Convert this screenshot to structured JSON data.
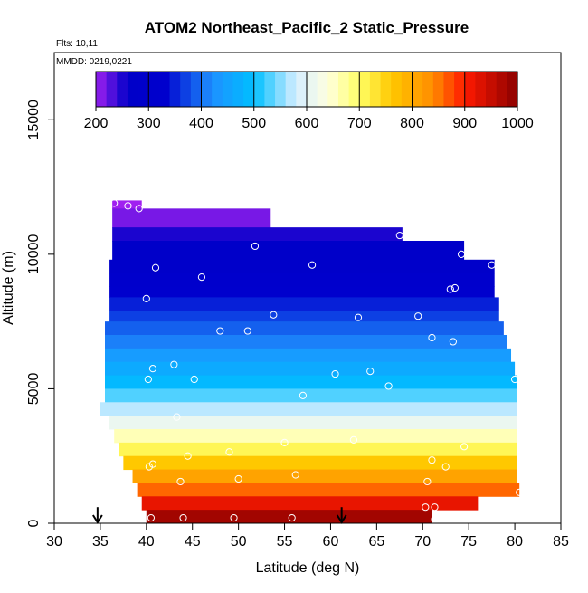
{
  "chart_data": {
    "type": "heatmap",
    "title": "ATOM2 Northeast_Pacific_2 Static_Pressure",
    "flights_label": "Flts: 10,11",
    "dates_label": "MMDD: 0219,0221",
    "xlabel": "Latitude (deg N)",
    "ylabel": "Altitude (m)",
    "xlim": [
      30,
      85
    ],
    "ylim": [
      0,
      17500
    ],
    "x_ticks": [
      30,
      35,
      40,
      45,
      50,
      55,
      60,
      65,
      70,
      75,
      80,
      85
    ],
    "y_ticks": [
      0,
      5000,
      10000,
      15000
    ],
    "colorbar": {
      "range": [
        200,
        1000
      ],
      "ticks": [
        200,
        300,
        400,
        500,
        600,
        700,
        800,
        900,
        1000
      ],
      "stops": [
        {
          "v": 200,
          "c": "#a020f0"
        },
        {
          "v": 260,
          "c": "#0000c8"
        },
        {
          "v": 330,
          "c": "#0000cd"
        },
        {
          "v": 420,
          "c": "#1e90ff"
        },
        {
          "v": 500,
          "c": "#00bfff"
        },
        {
          "v": 580,
          "c": "#d6eeff"
        },
        {
          "v": 640,
          "c": "#ffffe0"
        },
        {
          "v": 700,
          "c": "#ffff66"
        },
        {
          "v": 760,
          "c": "#ffc800"
        },
        {
          "v": 840,
          "c": "#ff8c00"
        },
        {
          "v": 900,
          "c": "#ff1a00"
        },
        {
          "v": 1000,
          "c": "#8b0000"
        }
      ]
    },
    "curtain_rows": [
      {
        "alt_bottom": 11700,
        "alt_top": 12000,
        "lat_start": 36.3,
        "lat_end": 39.5,
        "value": 200
      },
      {
        "alt_bottom": 11000,
        "alt_top": 11700,
        "lat_start": 36.3,
        "lat_end": 53.5,
        "value": 215
      },
      {
        "alt_bottom": 10500,
        "alt_top": 11000,
        "lat_start": 36.3,
        "lat_end": 67.8,
        "value": 250
      },
      {
        "alt_bottom": 9800,
        "alt_top": 10500,
        "lat_start": 36.3,
        "lat_end": 74.5,
        "value": 270
      },
      {
        "alt_bottom": 9300,
        "alt_top": 9800,
        "lat_start": 36.0,
        "lat_end": 77.8,
        "value": 290
      },
      {
        "alt_bottom": 8800,
        "alt_top": 9300,
        "lat_start": 36.0,
        "lat_end": 77.8,
        "value": 310
      },
      {
        "alt_bottom": 8400,
        "alt_top": 8800,
        "lat_start": 36.0,
        "lat_end": 77.8,
        "value": 330
      },
      {
        "alt_bottom": 7900,
        "alt_top": 8400,
        "lat_start": 36.0,
        "lat_end": 78.3,
        "value": 350
      },
      {
        "alt_bottom": 7500,
        "alt_top": 7900,
        "lat_start": 36.0,
        "lat_end": 78.3,
        "value": 370
      },
      {
        "alt_bottom": 7000,
        "alt_top": 7500,
        "lat_start": 35.5,
        "lat_end": 78.8,
        "value": 390
      },
      {
        "alt_bottom": 6500,
        "alt_top": 7000,
        "lat_start": 35.5,
        "lat_end": 79.2,
        "value": 410
      },
      {
        "alt_bottom": 6000,
        "alt_top": 6500,
        "lat_start": 35.5,
        "lat_end": 79.6,
        "value": 440
      },
      {
        "alt_bottom": 5500,
        "alt_top": 6000,
        "lat_start": 35.5,
        "lat_end": 80.0,
        "value": 465
      },
      {
        "alt_bottom": 5000,
        "alt_top": 5500,
        "lat_start": 35.5,
        "lat_end": 80.2,
        "value": 490
      },
      {
        "alt_bottom": 4500,
        "alt_top": 5000,
        "lat_start": 35.5,
        "lat_end": 80.2,
        "value": 530
      },
      {
        "alt_bottom": 4000,
        "alt_top": 4500,
        "lat_start": 35.0,
        "lat_end": 80.2,
        "value": 570
      },
      {
        "alt_bottom": 3500,
        "alt_top": 4000,
        "lat_start": 36.0,
        "lat_end": 80.2,
        "value": 610
      },
      {
        "alt_bottom": 3000,
        "alt_top": 3500,
        "lat_start": 36.5,
        "lat_end": 80.2,
        "value": 660
      },
      {
        "alt_bottom": 2500,
        "alt_top": 3000,
        "lat_start": 37.0,
        "lat_end": 80.2,
        "value": 710
      },
      {
        "alt_bottom": 2000,
        "alt_top": 2500,
        "lat_start": 37.5,
        "lat_end": 80.2,
        "value": 760
      },
      {
        "alt_bottom": 1500,
        "alt_top": 2000,
        "lat_start": 38.5,
        "lat_end": 80.2,
        "value": 810
      },
      {
        "alt_bottom": 1000,
        "alt_top": 1500,
        "lat_start": 39.0,
        "lat_end": 80.5,
        "value": 860
      },
      {
        "alt_bottom": 500,
        "alt_top": 1000,
        "lat_start": 39.5,
        "lat_end": 76.0,
        "value": 920
      },
      {
        "alt_bottom": 0,
        "alt_top": 500,
        "lat_start": 40.0,
        "lat_end": 71.0,
        "value": 980
      }
    ],
    "sample_points": [
      {
        "lat": 36.5,
        "alt": 11900
      },
      {
        "lat": 38.0,
        "alt": 11800
      },
      {
        "lat": 39.2,
        "alt": 11700
      },
      {
        "lat": 67.5,
        "alt": 10700
      },
      {
        "lat": 51.8,
        "alt": 10300
      },
      {
        "lat": 74.2,
        "alt": 10000
      },
      {
        "lat": 58.0,
        "alt": 9600
      },
      {
        "lat": 77.5,
        "alt": 9600
      },
      {
        "lat": 41.0,
        "alt": 9500
      },
      {
        "lat": 46.0,
        "alt": 9150
      },
      {
        "lat": 73.5,
        "alt": 8750
      },
      {
        "lat": 73.0,
        "alt": 8700
      },
      {
        "lat": 40.0,
        "alt": 8350
      },
      {
        "lat": 53.8,
        "alt": 7750
      },
      {
        "lat": 63.0,
        "alt": 7650
      },
      {
        "lat": 69.5,
        "alt": 7700
      },
      {
        "lat": 48.0,
        "alt": 7150
      },
      {
        "lat": 51.0,
        "alt": 7150
      },
      {
        "lat": 71.0,
        "alt": 6900
      },
      {
        "lat": 73.3,
        "alt": 6750
      },
      {
        "lat": 43.0,
        "alt": 5900
      },
      {
        "lat": 40.7,
        "alt": 5750
      },
      {
        "lat": 64.3,
        "alt": 5650
      },
      {
        "lat": 60.5,
        "alt": 5550
      },
      {
        "lat": 40.2,
        "alt": 5350
      },
      {
        "lat": 45.2,
        "alt": 5350
      },
      {
        "lat": 80.0,
        "alt": 5350
      },
      {
        "lat": 66.3,
        "alt": 5100
      },
      {
        "lat": 57.0,
        "alt": 4750
      },
      {
        "lat": 43.3,
        "alt": 3950
      },
      {
        "lat": 62.5,
        "alt": 3100
      },
      {
        "lat": 55.0,
        "alt": 3000
      },
      {
        "lat": 74.5,
        "alt": 2850
      },
      {
        "lat": 49.0,
        "alt": 2650
      },
      {
        "lat": 44.5,
        "alt": 2500
      },
      {
        "lat": 71.0,
        "alt": 2350
      },
      {
        "lat": 40.7,
        "alt": 2200
      },
      {
        "lat": 40.3,
        "alt": 2100
      },
      {
        "lat": 72.5,
        "alt": 2100
      },
      {
        "lat": 56.2,
        "alt": 1800
      },
      {
        "lat": 50.0,
        "alt": 1650
      },
      {
        "lat": 43.7,
        "alt": 1550
      },
      {
        "lat": 70.5,
        "alt": 1550
      },
      {
        "lat": 80.5,
        "alt": 1150
      },
      {
        "lat": 70.3,
        "alt": 600
      },
      {
        "lat": 71.3,
        "alt": 600
      },
      {
        "lat": 40.5,
        "alt": 200
      },
      {
        "lat": 44.0,
        "alt": 200
      },
      {
        "lat": 49.5,
        "alt": 200
      },
      {
        "lat": 55.8,
        "alt": 200
      },
      {
        "lat": 71.3,
        "alt": 150
      }
    ],
    "arrows": [
      {
        "lat": 34.7,
        "alt_top": 700,
        "alt_bottom": 0
      },
      {
        "lat": 61.2,
        "alt_top": 700,
        "alt_bottom": 0
      }
    ]
  }
}
